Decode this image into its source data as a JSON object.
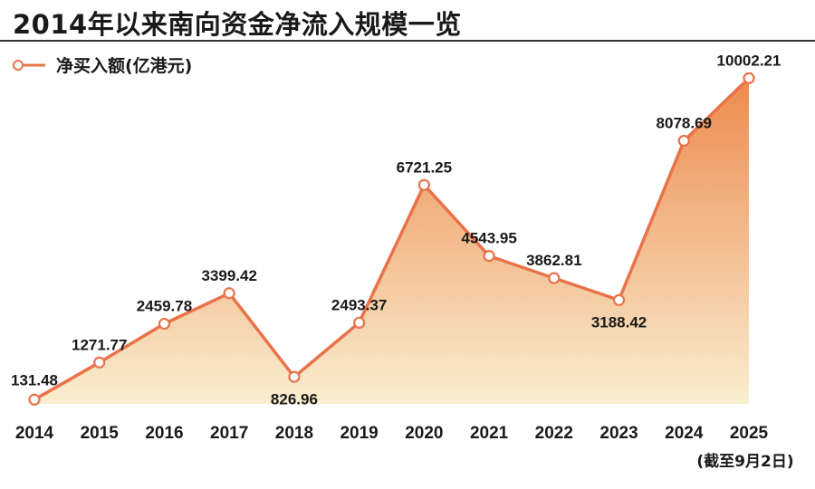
{
  "chart_data": {
    "type": "area",
    "title": "2014年以来南向资金净流入规模一览",
    "categories": [
      "2014",
      "2015",
      "2016",
      "2017",
      "2018",
      "2019",
      "2020",
      "2021",
      "2022",
      "2023",
      "2024",
      "2025"
    ],
    "series": [
      {
        "name": "净买入额(亿港元)",
        "values": [
          131.48,
          1271.77,
          2459.78,
          3399.42,
          826.96,
          2493.37,
          6721.25,
          4543.95,
          3862.81,
          3188.42,
          8078.69,
          10002.21
        ],
        "labels": [
          "131.48",
          "1271.77",
          "2459.78",
          "3399.42",
          "826.96",
          "2493.37",
          "6721.25",
          "4543.95",
          "3862.81",
          "3188.42",
          "8078.69",
          "10002.21"
        ]
      }
    ],
    "ylim": [
      0,
      10400
    ],
    "grid": false,
    "legend": "top-left",
    "note": "(截至9月2日)",
    "colors": {
      "line": "#e8734a",
      "area_top": "#ed8a4e",
      "area_bottom": "#f9eecf",
      "marker_fill": "#ffffff"
    }
  }
}
